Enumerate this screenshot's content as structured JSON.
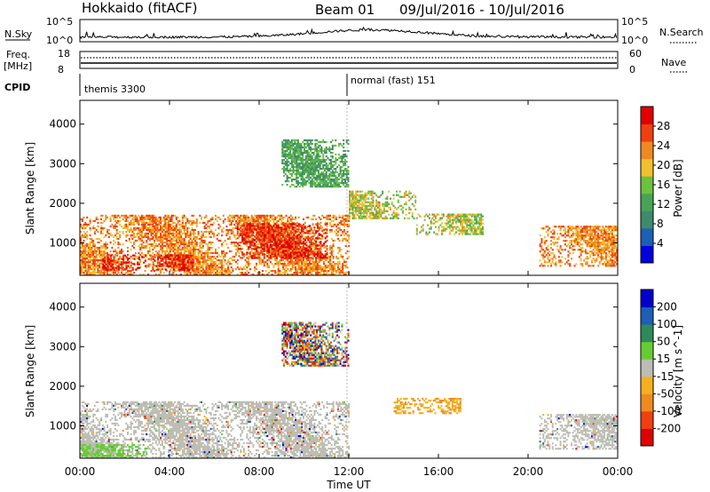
{
  "header": {
    "radar": "Hokkaido (fitACF)",
    "beam": "Beam 01",
    "daterange": "09/Jul/2016 - 10/Jul/2016"
  },
  "nsky": {
    "label": "N.Sky",
    "tick_top": "10^5",
    "tick_bottom": "10^0",
    "right_tick_top": "10^5",
    "right_tick_bottom": "10^0",
    "right_label": "N.Search"
  },
  "freq": {
    "label_top": "Freq.",
    "label_unit": "[MHz]",
    "tick_top": "18",
    "tick_bottom": "8",
    "right_tick_top": "60",
    "right_tick_bottom": "0",
    "right_label": "Nave"
  },
  "cpid": {
    "label": "CPID",
    "entries": [
      "themis 3300",
      "normal (fast) 151"
    ],
    "switch_hour": 12
  },
  "time_axis": {
    "label": "Time UT",
    "ticks": [
      "00:00",
      "04:00",
      "08:00",
      "12:00",
      "16:00",
      "20:00",
      "00:00"
    ],
    "range_hours": [
      0,
      24
    ]
  },
  "chart_data": [
    {
      "type": "heatmap",
      "title": "Power",
      "ylabel": "Slant Range [km]",
      "xlabel": "",
      "ylim": [
        180,
        4600
      ],
      "yticks": [
        "4000",
        "3000",
        "2000",
        "1000"
      ],
      "colorbar": {
        "label": "Power [dB]",
        "ticks": [
          "28",
          "24",
          "20",
          "16",
          "12",
          "8",
          "4"
        ],
        "range": [
          0,
          32
        ],
        "colors": [
          "#0000dd",
          "#1c5fb5",
          "#3f8a6c",
          "#49a357",
          "#6cc23f",
          "#f0c030",
          "#f08a20",
          "#f04010",
          "#e00000"
        ]
      },
      "echo_regions": [
        {
          "t": [
            0,
            12
          ],
          "range_km": [
            180,
            1700
          ],
          "level": "strong"
        },
        {
          "t": [
            1,
            5
          ],
          "range_km": [
            300,
            700
          ],
          "level": "very strong"
        },
        {
          "t": [
            7,
            11
          ],
          "range_km": [
            600,
            1500
          ],
          "level": "very strong"
        },
        {
          "t": [
            12,
            15
          ],
          "range_km": [
            1600,
            2300
          ],
          "level": "moderate"
        },
        {
          "t": [
            15,
            18
          ],
          "range_km": [
            1200,
            1700
          ],
          "level": "moderate"
        },
        {
          "t": [
            20.5,
            24
          ],
          "range_km": [
            400,
            1400
          ],
          "level": "strong"
        },
        {
          "t": [
            9,
            12
          ],
          "range_km": [
            2400,
            3600
          ],
          "level": "weak"
        }
      ]
    },
    {
      "type": "heatmap",
      "title": "Velocity",
      "ylabel": "Slant Range [km]",
      "xlabel": "Time UT",
      "ylim": [
        180,
        4600
      ],
      "yticks": [
        "4000",
        "3000",
        "2000",
        "1000"
      ],
      "colorbar": {
        "label": "Velocity [m s^-1]",
        "ticks": [
          "200",
          "100",
          "50",
          "15",
          "-15",
          "-50",
          "-100",
          "-200"
        ],
        "range": [
          -250,
          250
        ],
        "colors": [
          "#e00000",
          "#f04010",
          "#f08a20",
          "#f5b020",
          "#bdbdb5",
          "#66cc33",
          "#2f8a5a",
          "#1c5fb5",
          "#0000cc"
        ]
      },
      "echo_regions": [
        {
          "t": [
            0,
            12
          ],
          "range_km": [
            180,
            1600
          ],
          "velocity": "near zero (ground scatter)"
        },
        {
          "t": [
            0,
            3
          ],
          "range_km": [
            180,
            500
          ],
          "velocity": "positive 50-100"
        },
        {
          "t": [
            14,
            17
          ],
          "range_km": [
            1300,
            1700
          ],
          "velocity": "negative -50"
        },
        {
          "t": [
            20.5,
            24
          ],
          "range_km": [
            400,
            1300
          ],
          "velocity": "near zero (ground scatter)"
        },
        {
          "t": [
            9,
            12
          ],
          "range_km": [
            2500,
            3600
          ],
          "velocity": "mixed"
        }
      ]
    }
  ]
}
